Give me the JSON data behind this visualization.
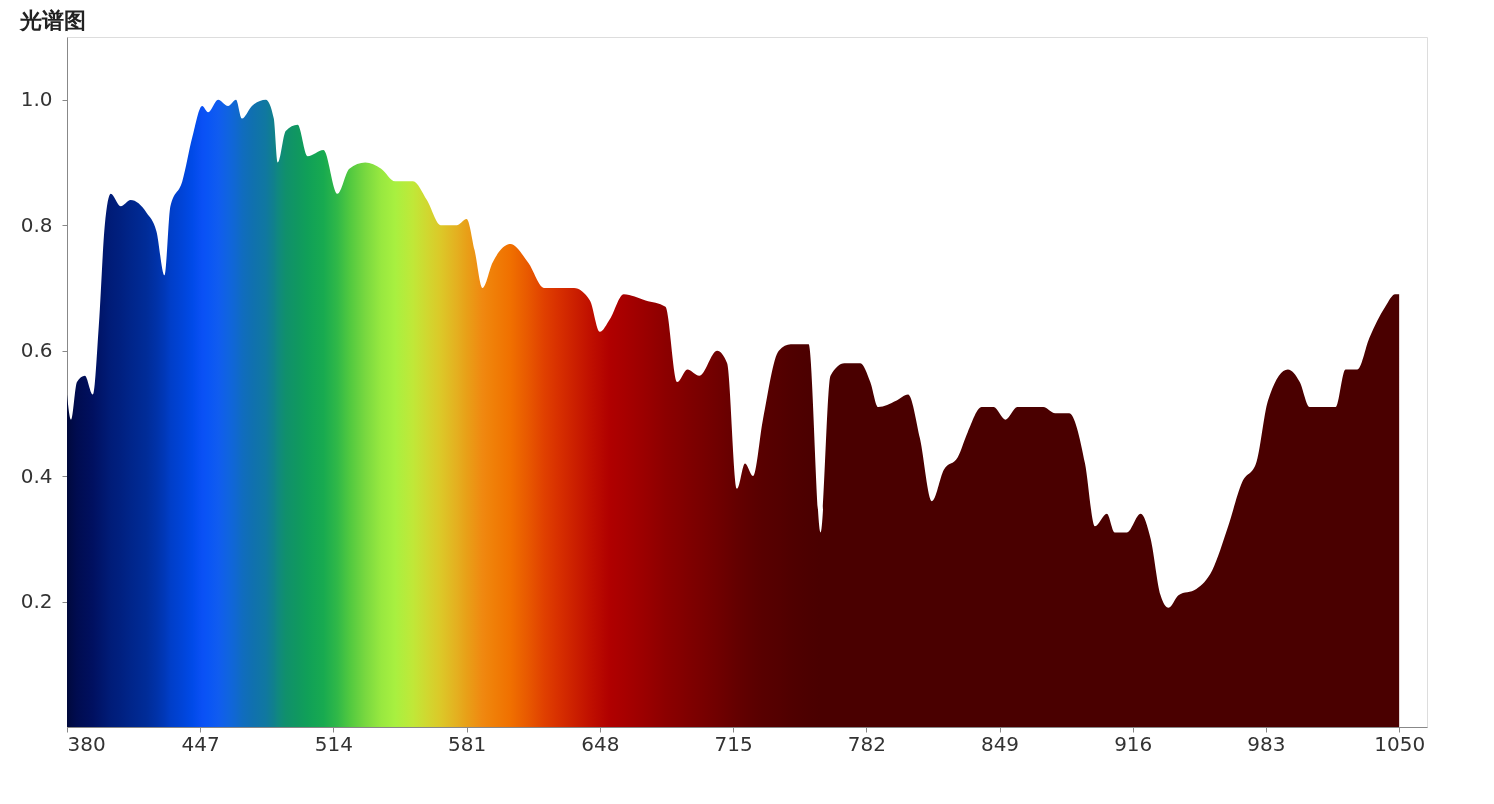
{
  "chart_data": {
    "type": "area",
    "title": "光谱图",
    "x": [
      380,
      382,
      385,
      389,
      393,
      396,
      399,
      402,
      407,
      412,
      420,
      425,
      429,
      432,
      438,
      443,
      448,
      451,
      456,
      461,
      465,
      468,
      473,
      480,
      484,
      486,
      490,
      496,
      501,
      509,
      516,
      522,
      530,
      538,
      545,
      554,
      561,
      568,
      576,
      581,
      585,
      589,
      594,
      603,
      612,
      620,
      627,
      635,
      643,
      648,
      653,
      660,
      671,
      681,
      687,
      692,
      698,
      707,
      712,
      717,
      721,
      725,
      730,
      738,
      744,
      753,
      759,
      764,
      771,
      779,
      784,
      788,
      797,
      803,
      809,
      815,
      821,
      828,
      833,
      840,
      846,
      852,
      858,
      866,
      871,
      877,
      884,
      892,
      897,
      903,
      907,
      913,
      920,
      925,
      930,
      934,
      939,
      948,
      956,
      964,
      971,
      978,
      984,
      994,
      1000,
      1005,
      1012,
      1018,
      1023,
      1029,
      1035,
      1043,
      1048,
      1050
    ],
    "series": [
      {
        "values": [
          0.53,
          0.49,
          0.55,
          0.56,
          0.53,
          0.64,
          0.8,
          0.85,
          0.83,
          0.84,
          0.82,
          0.79,
          0.72,
          0.83,
          0.87,
          0.94,
          0.99,
          0.98,
          1.0,
          0.99,
          1.0,
          0.97,
          0.99,
          1.0,
          0.97,
          0.9,
          0.95,
          0.96,
          0.91,
          0.92,
          0.85,
          0.89,
          0.9,
          0.89,
          0.87,
          0.87,
          0.84,
          0.8,
          0.8,
          0.81,
          0.76,
          0.7,
          0.74,
          0.77,
          0.74,
          0.7,
          0.7,
          0.7,
          0.68,
          0.63,
          0.65,
          0.69,
          0.68,
          0.67,
          0.55,
          0.57,
          0.56,
          0.6,
          0.58,
          0.38,
          0.42,
          0.4,
          0.49,
          0.6,
          0.61,
          0.61,
          0.31,
          0.56,
          0.58,
          0.58,
          0.55,
          0.51,
          0.52,
          0.53,
          0.46,
          0.36,
          0.41,
          0.43,
          0.47,
          0.51,
          0.51,
          0.49,
          0.51,
          0.51,
          0.51,
          0.5,
          0.5,
          0.42,
          0.32,
          0.34,
          0.31,
          0.31,
          0.34,
          0.3,
          0.21,
          0.19,
          0.21,
          0.22,
          0.25,
          0.32,
          0.39,
          0.42,
          0.52,
          0.57,
          0.55,
          0.51,
          0.51,
          0.51,
          0.57,
          0.57,
          0.62,
          0.67,
          0.69,
          0.69
        ],
        "colors": [
          "#00083a",
          "#000a45",
          "#000c50",
          "#000e58",
          "#001060",
          "#001468",
          "#001870",
          "#001c78",
          "#002080",
          "#00258a",
          "#002c98",
          "#0032a8",
          "#0038b8",
          "#003ec8",
          "#0044d8",
          "#004ae8",
          "#0a50f5",
          "#0a55f5",
          "#105cf0",
          "#1064e0",
          "#1068d0",
          "#106cc0",
          "#1070b0",
          "#1078a0",
          "#10808c",
          "#108880",
          "#10906c",
          "#109860",
          "#10a058",
          "#18aa50",
          "#30b848",
          "#50c840",
          "#78d840",
          "#98e840",
          "#a8f040",
          "#c0e838",
          "#d0d830",
          "#dcc828",
          "#e4b020",
          "#e8a018",
          "#ec9414",
          "#f08810",
          "#f08008",
          "#f07000",
          "#e85800",
          "#e04000",
          "#d83000",
          "#cc2000",
          "#c01000",
          "#b80800",
          "#b00000",
          "#a80000",
          "#9a0000",
          "#8c0000",
          "#860000",
          "#800000",
          "#7a0000",
          "#700000",
          "#6a0000",
          "#640000",
          "#600000",
          "#5c0000",
          "#580000",
          "#540000",
          "#500000",
          "#4c0000",
          "#4a0000",
          "#4a0000",
          "#4a0000",
          "#4a0000",
          "#4a0000",
          "#4a0000",
          "#4a0000",
          "#4a0000",
          "#4a0000",
          "#4a0000",
          "#4a0000",
          "#4a0000",
          "#4a0000",
          "#4a0000",
          "#4a0000",
          "#4a0000",
          "#4a0000",
          "#4a0000",
          "#4a0000",
          "#4a0000",
          "#4a0000",
          "#4a0000",
          "#4a0000",
          "#4a0000",
          "#4a0000",
          "#4a0000",
          "#4a0000",
          "#4a0000",
          "#4a0000",
          "#4a0000",
          "#4a0000",
          "#4a0000",
          "#4a0000",
          "#4a0000",
          "#4a0000",
          "#4a0000",
          "#4a0000",
          "#4a0000",
          "#4a0000",
          "#4a0000",
          "#4a0000",
          "#4a0000",
          "#4a0000",
          "#4a0000",
          "#4a0000",
          "#4a0000",
          "#4a0000",
          "#4a0000"
        ]
      }
    ],
    "xlim": [
      380,
      1064
    ],
    "xticks": [
      380,
      447,
      514,
      581,
      648,
      715,
      782,
      849,
      916,
      983,
      1050
    ],
    "ylim": [
      0,
      1.1
    ],
    "yticks": [
      0.2,
      0.4,
      0.6,
      0.8,
      {
        "value": 1.0,
        "label": "1.0"
      }
    ],
    "grid": false
  }
}
